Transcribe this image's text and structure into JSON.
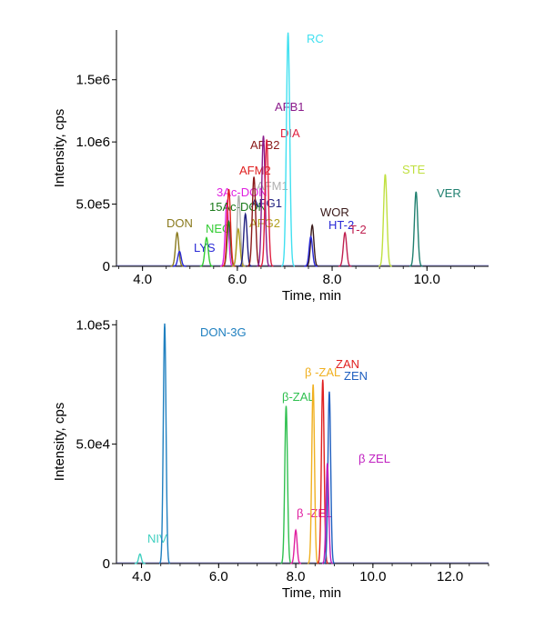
{
  "chart_data": [
    {
      "type": "line",
      "title": "",
      "xlabel": "Time, min",
      "ylabel": "Intensity, cps",
      "xlim": [
        3.45,
        11.3
      ],
      "ylim": [
        0,
        1900000
      ],
      "x_ticks": [
        4.0,
        6.0,
        8.0,
        10.0
      ],
      "x_tick_labels": [
        "4.0",
        "6.0",
        "8.0",
        "10.0"
      ],
      "y_ticks": [
        0,
        500000,
        1000000,
        1500000
      ],
      "y_tick_labels": [
        "0",
        "5.0e5",
        "1.0e6",
        "1.5e6"
      ],
      "grid": false,
      "legend": "none",
      "series": [
        {
          "name": "DON",
          "rt": 4.73,
          "peak": 270000,
          "color": "#8a7a1e"
        },
        {
          "name": "LYS",
          "rt": 4.78,
          "peak": 120000,
          "color": "#2a2ad6"
        },
        {
          "name": "NEO",
          "rt": 5.35,
          "peak": 230000,
          "color": "#33cc33"
        },
        {
          "name": "3Ac-DON",
          "rt": 5.78,
          "peak": 520000,
          "color": "#e020e0"
        },
        {
          "name": "15Ac-DON",
          "rt": 5.82,
          "peak": 360000,
          "color": "#1a7a1a"
        },
        {
          "name": "AFM2",
          "rt": 5.82,
          "peak": 620000,
          "color": "#e02020"
        },
        {
          "name": "AFM1",
          "rt": 6.03,
          "peak": 570000,
          "color": "#b0b0b0"
        },
        {
          "name": "AFG2",
          "rt": 6.02,
          "peak": 300000,
          "color": "#b0a020"
        },
        {
          "name": "AFG1",
          "rt": 6.17,
          "peak": 420000,
          "color": "#202080"
        },
        {
          "name": "AFB2",
          "rt": 6.35,
          "peak": 720000,
          "color": "#8b1a1a"
        },
        {
          "name": "AFB1",
          "rt": 6.55,
          "peak": 1050000,
          "color": "#8a1a8a"
        },
        {
          "name": "DIA",
          "rt": 6.62,
          "peak": 1020000,
          "color": "#e02040"
        },
        {
          "name": "RC",
          "rt": 7.07,
          "peak": 1880000,
          "color": "#40e0f0"
        },
        {
          "name": "WOR",
          "rt": 7.58,
          "peak": 330000,
          "color": "#3a1a1a"
        },
        {
          "name": "HT-2",
          "rt": 7.55,
          "peak": 240000,
          "color": "#2a2ad6"
        },
        {
          "name": "T-2",
          "rt": 8.27,
          "peak": 270000,
          "color": "#c02050"
        },
        {
          "name": "STE",
          "rt": 9.12,
          "peak": 740000,
          "color": "#c0e040"
        },
        {
          "name": "VER",
          "rt": 9.77,
          "peak": 600000,
          "color": "#208070"
        }
      ]
    },
    {
      "type": "line",
      "title": "",
      "xlabel": "Time, min",
      "ylabel": "Intensity, cps",
      "xlim": [
        3.35,
        13.0
      ],
      "ylim": [
        0,
        102000
      ],
      "x_ticks": [
        4.0,
        6.0,
        8.0,
        10.0,
        12.0
      ],
      "x_tick_labels": [
        "4.0",
        "6.0",
        "8.0",
        "10.0",
        "12.0"
      ],
      "y_ticks": [
        0,
        50000,
        100000
      ],
      "y_tick_labels": [
        "0",
        "5.0e4",
        "1.0e5"
      ],
      "grid": false,
      "legend": "none",
      "series": [
        {
          "name": "NIV",
          "rt": 3.96,
          "peak": 4000,
          "color": "#40d0c0"
        },
        {
          "name": "DON-3G",
          "rt": 4.6,
          "peak": 100500,
          "color": "#2080c0"
        },
        {
          "name": "β-ZAL",
          "rt": 7.75,
          "peak": 66000,
          "color": "#30c050"
        },
        {
          "name": "β -ZEL",
          "rt": 8.0,
          "peak": 14000,
          "color": "#e020a0"
        },
        {
          "name": "β -ZAL",
          "rt": 8.45,
          "peak": 75000,
          "color": "#f0b020"
        },
        {
          "name": "ZAN",
          "rt": 8.7,
          "peak": 77000,
          "color": "#e02020"
        },
        {
          "name": "ZEN",
          "rt": 8.87,
          "peak": 72000,
          "color": "#2060c0"
        },
        {
          "name": "β ZEL",
          "rt": 8.82,
          "peak": 42000,
          "color": "#c020c0"
        }
      ]
    }
  ]
}
